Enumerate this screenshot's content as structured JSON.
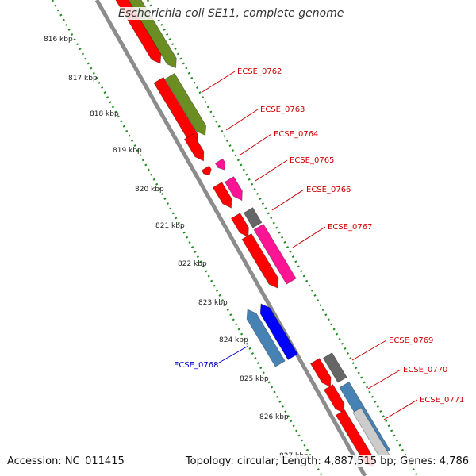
{
  "title": "Escherichia coli SE11, complete genome",
  "footer": {
    "accession": "Accession: NC_011415",
    "summary": "Topology: circular; Length: 4,887,515 bp; Genes: 4,786"
  },
  "scale": {
    "unit": "kbp",
    "ticks": [
      "816 kbp",
      "817 kbp",
      "818 kbp",
      "819 kbp",
      "820 kbp",
      "821 kbp",
      "822 kbp",
      "823 kbp",
      "824 kbp",
      "825 kbp",
      "826 kbp",
      "827 kbp"
    ]
  },
  "colors": {
    "backbone": "#8c8c8c",
    "red_gene": "#ff0000",
    "olive_gene": "#6b8e23",
    "magenta_gene": "#ff1493",
    "steel_gene": "#4682b4",
    "blue_gene": "#0000ff",
    "gray_gene": "#666666",
    "tick_green": "#228b22",
    "label_red": "#cc0000",
    "label_blue": "#0000cc"
  },
  "gene_labels": [
    {
      "name": "ECSE_0762",
      "color": "red"
    },
    {
      "name": "ECSE_0763",
      "color": "red"
    },
    {
      "name": "ECSE_0764",
      "color": "red"
    },
    {
      "name": "ECSE_0765",
      "color": "red"
    },
    {
      "name": "ECSE_0766",
      "color": "red"
    },
    {
      "name": "ECSE_0767",
      "color": "red"
    },
    {
      "name": "ECSE_0768",
      "color": "blue"
    },
    {
      "name": "ECSE_0769",
      "color": "red"
    },
    {
      "name": "ECSE_0770",
      "color": "red"
    },
    {
      "name": "ECSE_0771",
      "color": "red"
    }
  ]
}
